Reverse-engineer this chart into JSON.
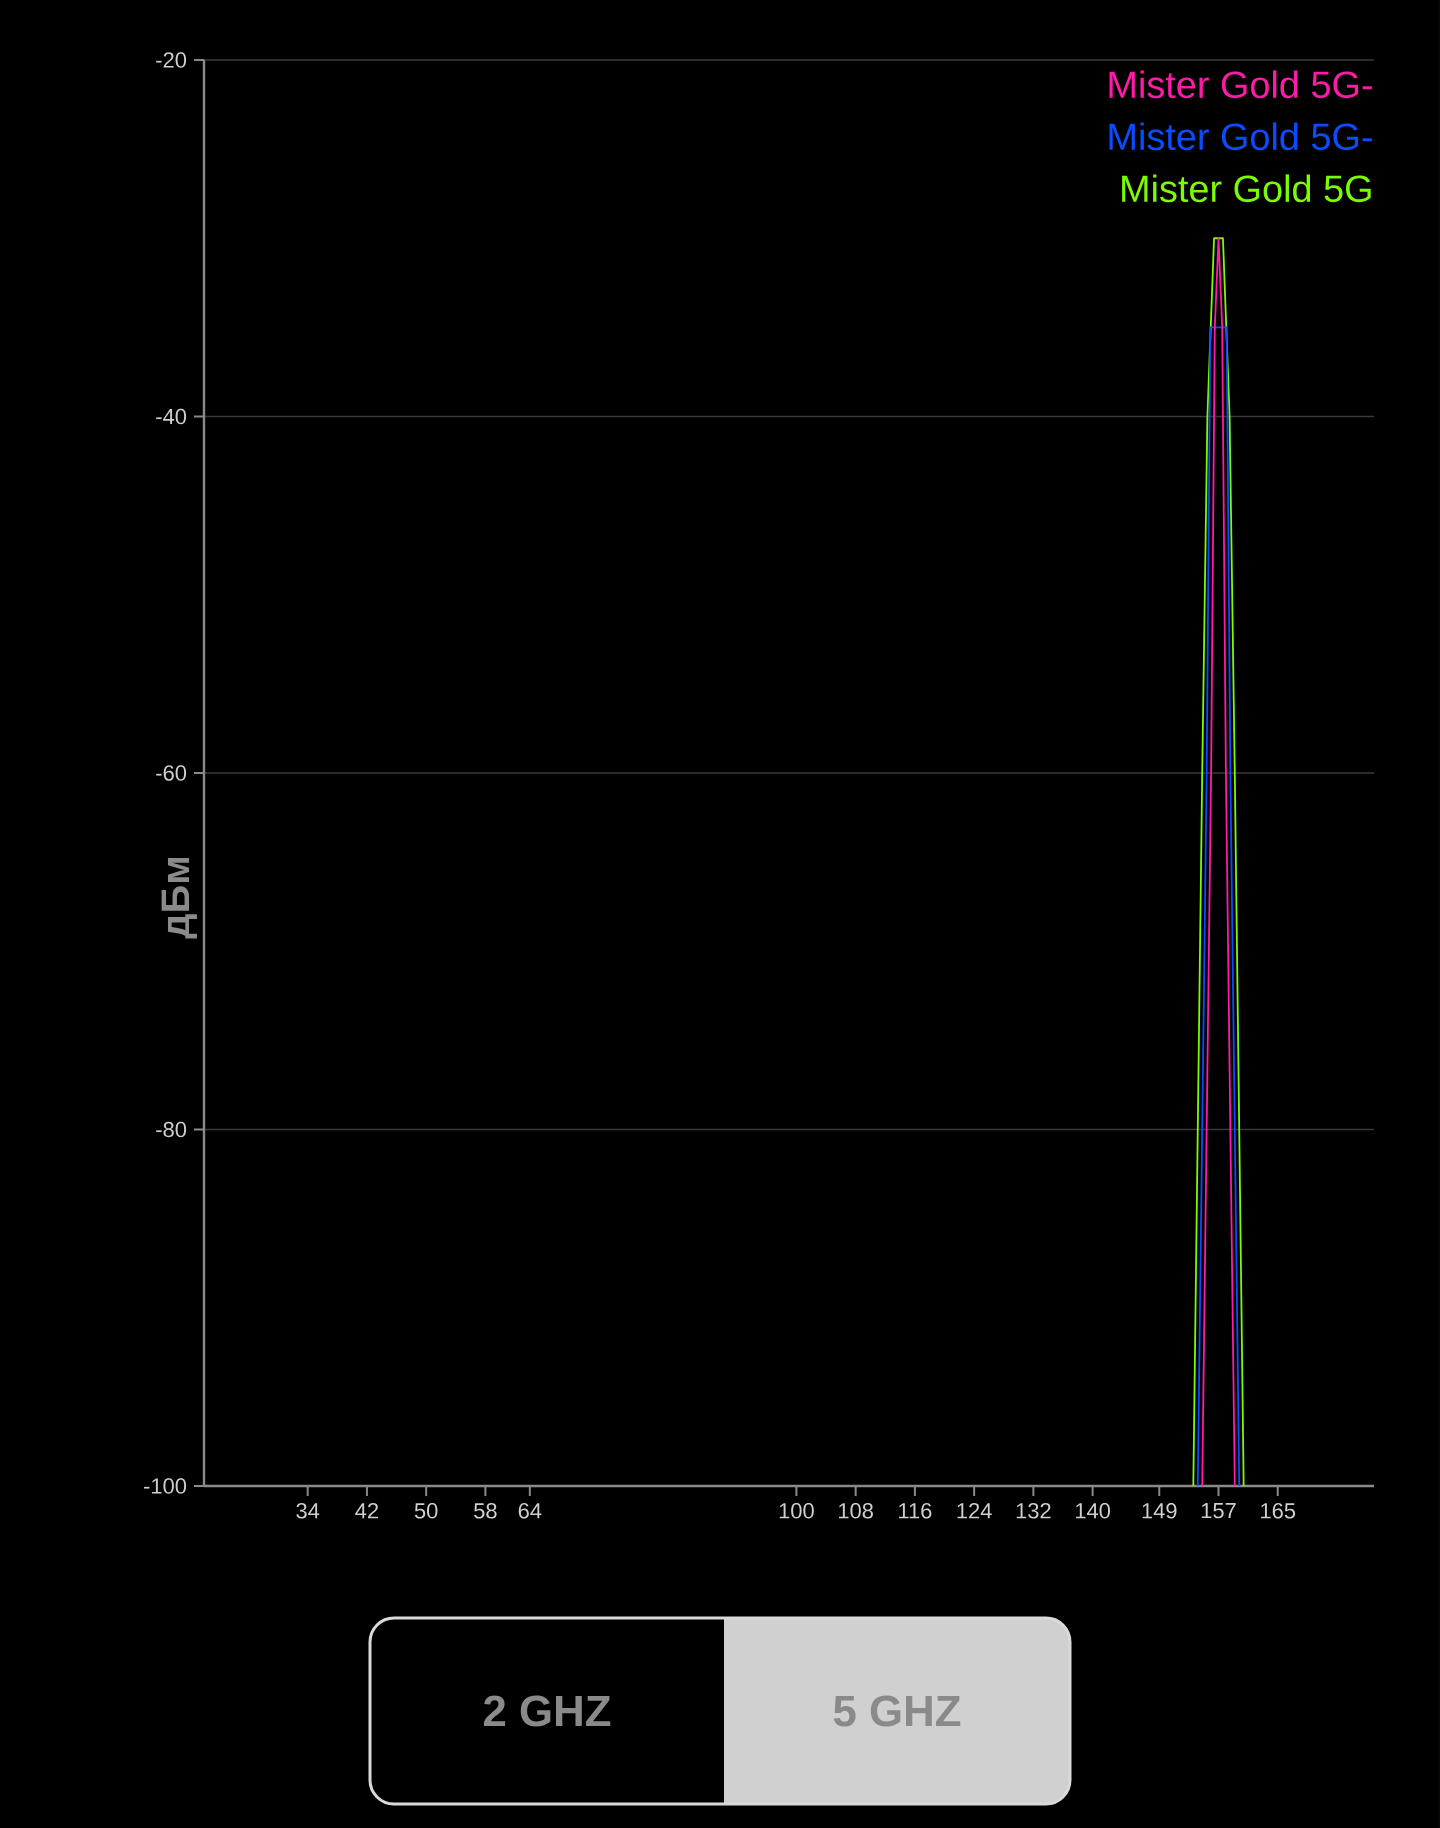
{
  "chart_data": {
    "type": "line",
    "ylabel": "дБм",
    "xlim": [
      20,
      178
    ],
    "xticks": [
      34,
      42,
      50,
      58,
      64,
      100,
      108,
      116,
      124,
      132,
      140,
      149,
      157,
      165
    ],
    "ylim": [
      -100,
      -20
    ],
    "yticks": [
      -100,
      -80,
      -60,
      -40,
      -20
    ],
    "grid": "y",
    "legend": "top right",
    "marker": "none",
    "series": [
      {
        "name": "Mister Gold 5G-",
        "color": "#ff1aa8",
        "x": [
          154.8,
          156,
          156.5,
          157,
          157.5,
          158,
          159.2
        ],
        "values": [
          -100,
          -60,
          -35,
          -30,
          -35,
          -60,
          -100
        ]
      },
      {
        "name": "Mister Gold 5G-",
        "color": "#0a4cff",
        "x": [
          154.2,
          155.4,
          155.9,
          158.1,
          158.6,
          159.8
        ],
        "values": [
          -100,
          -60,
          -35,
          -35,
          -60,
          -100
        ]
      },
      {
        "name": "Mister Gold 5G",
        "color": "#7cfc00",
        "x": [
          153.6,
          154.8,
          155.5,
          156.4,
          157.6,
          158.5,
          159.2,
          160.4
        ],
        "values": [
          -100,
          -60,
          -40,
          -30,
          -30,
          -40,
          -60,
          -100
        ]
      }
    ],
    "annotations": [
      "2 GHZ",
      "5 GHZ"
    ]
  }
}
